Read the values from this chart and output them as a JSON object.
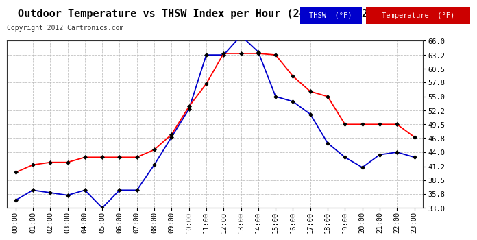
{
  "title": "Outdoor Temperature vs THSW Index per Hour (24 Hours)  20121011",
  "copyright": "Copyright 2012 Cartronics.com",
  "hours": [
    "00:00",
    "01:00",
    "02:00",
    "03:00",
    "04:00",
    "05:00",
    "06:00",
    "07:00",
    "08:00",
    "09:00",
    "10:00",
    "11:00",
    "12:00",
    "13:00",
    "14:00",
    "15:00",
    "16:00",
    "17:00",
    "18:00",
    "19:00",
    "20:00",
    "21:00",
    "22:00",
    "23:00"
  ],
  "temperature": [
    40.0,
    41.5,
    42.0,
    42.0,
    43.0,
    43.0,
    43.0,
    43.0,
    44.5,
    47.5,
    53.0,
    57.5,
    63.5,
    63.5,
    63.5,
    63.2,
    59.0,
    56.0,
    55.0,
    49.5,
    49.5,
    49.5,
    49.5,
    47.0
  ],
  "thsw": [
    34.5,
    36.5,
    36.0,
    35.5,
    36.5,
    33.0,
    36.5,
    36.5,
    41.5,
    47.0,
    52.5,
    63.2,
    63.2,
    67.0,
    63.8,
    55.0,
    54.0,
    51.5,
    45.8,
    43.0,
    41.0,
    43.5,
    44.0,
    43.0
  ],
  "ylim_min": 33.0,
  "ylim_max": 66.0,
  "yticks": [
    33.0,
    35.8,
    38.5,
    41.2,
    44.0,
    46.8,
    49.5,
    52.2,
    55.0,
    57.8,
    60.5,
    63.2,
    66.0
  ],
  "temp_color": "#ff0000",
  "thsw_color": "#0000cc",
  "marker_color": "#000000",
  "bg_color": "#ffffff",
  "grid_color": "#bbbbbb",
  "legend_thsw_bg": "#0000cc",
  "legend_temp_bg": "#cc0000",
  "title_fontsize": 11,
  "copyright_fontsize": 7,
  "tick_fontsize": 7.5,
  "legend_fontsize": 7.5
}
